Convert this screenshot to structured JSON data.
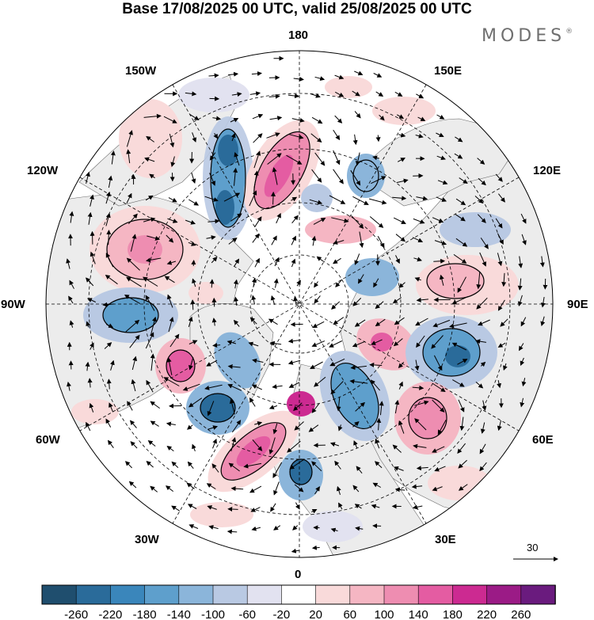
{
  "title": "Base 17/08/2025 00 UTC, valid 25/08/2025 00 UTC",
  "brand": "MODES",
  "brand_mark": "®",
  "longitude_labels": {
    "top": "180",
    "bottom": "0",
    "left": "90W",
    "right": "90E",
    "upper_left_1": "150W",
    "upper_left_2": "120W",
    "upper_right_1": "150E",
    "upper_right_2": "120E",
    "lower_left_1": "60W",
    "lower_left_2": "30W",
    "lower_right_1": "60E",
    "lower_right_2": "30E"
  },
  "vector_scale_label": "30",
  "colorbar": {
    "ticks": [
      "-260",
      "-220",
      "-180",
      "-140",
      "-100",
      "-60",
      "-20",
      "20",
      "60",
      "100",
      "140",
      "180",
      "220",
      "260"
    ],
    "colors": [
      "#1f4e6e",
      "#2a6b9a",
      "#3a86bb",
      "#5e9fcc",
      "#8bb5da",
      "#b9c9e3",
      "#e2e2f0",
      "#ffffff",
      "#f9dada",
      "#f5b6c3",
      "#ee8db1",
      "#e45ca2",
      "#cc2a91",
      "#9b1b86",
      "#6a1b7e"
    ]
  },
  "colors": {
    "land": "#ececec",
    "ocean": "#ffffff"
  }
}
